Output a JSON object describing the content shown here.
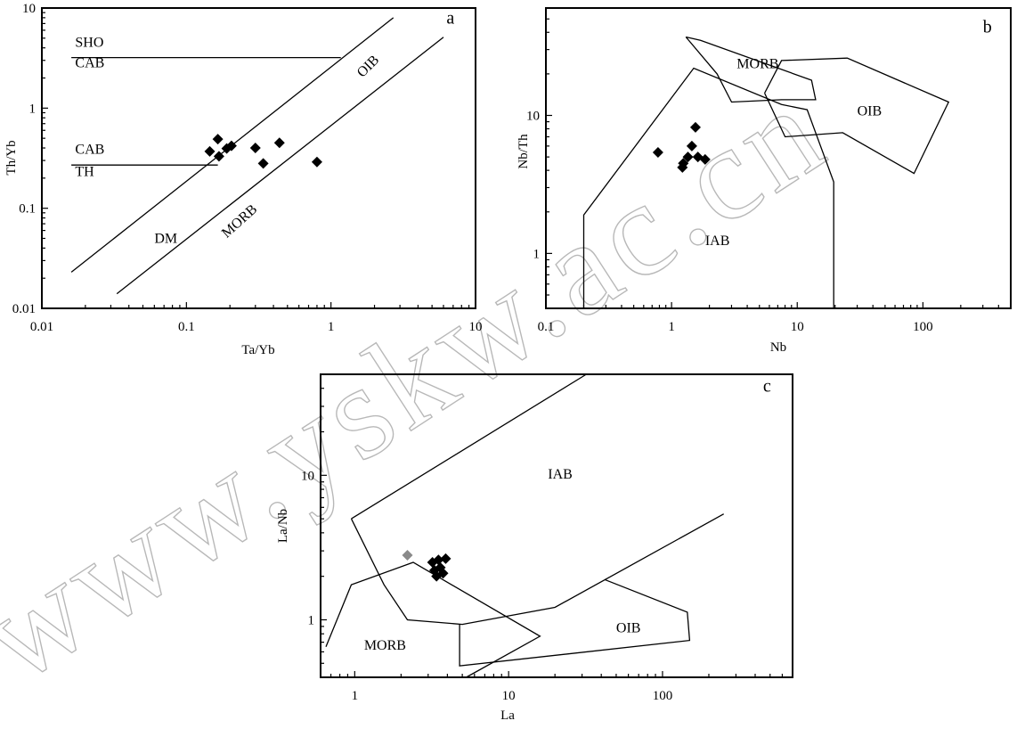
{
  "watermark": "www.yskw.ac.cn",
  "chart_data": [
    {
      "panel": "a",
      "type": "scatter",
      "xscale": "log",
      "yscale": "log",
      "xlim": [
        0.01,
        10
      ],
      "ylim": [
        0.01,
        10
      ],
      "xticks": [
        "0.01",
        "0.1",
        "1",
        "10"
      ],
      "yticks": [
        "0.01",
        "0.1",
        "1",
        "10"
      ],
      "xlabel": "Ta/Yb",
      "ylabel": "Th/Yb",
      "points": [
        {
          "x": 0.145,
          "y": 0.37
        },
        {
          "x": 0.165,
          "y": 0.49
        },
        {
          "x": 0.168,
          "y": 0.33
        },
        {
          "x": 0.19,
          "y": 0.395
        },
        {
          "x": 0.205,
          "y": 0.42
        },
        {
          "x": 0.3,
          "y": 0.4
        },
        {
          "x": 0.34,
          "y": 0.28
        },
        {
          "x": 0.44,
          "y": 0.45
        },
        {
          "x": 0.8,
          "y": 0.29
        }
      ],
      "lines": [
        {
          "name": "array-upper",
          "pts": [
            [
              0.016,
              0.023
            ],
            [
              2.7,
              8.0
            ]
          ]
        },
        {
          "name": "array-lower",
          "pts": [
            [
              0.033,
              0.014
            ],
            [
              6.0,
              5.1
            ]
          ]
        },
        {
          "name": "sho-cab",
          "pts": [
            [
              0.016,
              3.2
            ],
            [
              1.17,
              3.2
            ]
          ]
        },
        {
          "name": "cab-th",
          "pts": [
            [
              0.016,
              0.27
            ],
            [
              0.165,
              0.27
            ]
          ]
        }
      ],
      "labels": [
        {
          "text": "SHO",
          "x": 0.017,
          "y": 4.1,
          "rot": 0
        },
        {
          "text": "CAB",
          "x": 0.017,
          "y": 2.55,
          "rot": 0
        },
        {
          "text": "CAB",
          "x": 0.017,
          "y": 0.35,
          "rot": 0
        },
        {
          "text": "TH",
          "x": 0.017,
          "y": 0.21,
          "rot": 0
        },
        {
          "text": "DM",
          "x": 0.06,
          "y": 0.045,
          "rot": 0
        },
        {
          "text": "MORB",
          "x": 0.19,
          "y": 0.05,
          "rot": -42
        },
        {
          "text": "OIB",
          "x": 1.65,
          "y": 2.0,
          "rot": -45
        },
        {
          "text": "a",
          "x": 6.3,
          "y": 7.0,
          "rot": 0
        }
      ]
    },
    {
      "panel": "b",
      "type": "scatter",
      "xscale": "log",
      "yscale": "log",
      "xlim": [
        0.1,
        500
      ],
      "ylim": [
        0.4,
        60
      ],
      "xticks": [
        "0.1",
        "1",
        "10",
        "100"
      ],
      "yticks": [
        "1",
        "10"
      ],
      "xlabel": "Nb",
      "ylabel": "Nb/Th",
      "points": [
        {
          "x": 0.78,
          "y": 5.4
        },
        {
          "x": 1.22,
          "y": 4.2
        },
        {
          "x": 1.24,
          "y": 4.5
        },
        {
          "x": 1.35,
          "y": 5.0
        },
        {
          "x": 1.45,
          "y": 6.0
        },
        {
          "x": 1.55,
          "y": 8.2
        },
        {
          "x": 1.62,
          "y": 5.0
        },
        {
          "x": 1.85,
          "y": 4.8
        }
      ],
      "lines": [
        {
          "name": "IAB",
          "pts": [
            [
              0.2,
              0.4
            ],
            [
              0.2,
              1.9
            ],
            [
              1.5,
              22
            ],
            [
              7.5,
              12
            ],
            [
              12,
              11
            ],
            [
              19.5,
              3.3
            ],
            [
              19.5,
              0.4
            ]
          ]
        },
        {
          "name": "MORB",
          "pts": [
            [
              1.3,
              37
            ],
            [
              2.3,
              20
            ],
            [
              3.0,
              12.5
            ],
            [
              7.5,
              13
            ],
            [
              14,
              13
            ],
            [
              13,
              18
            ],
            [
              1.7,
              35
            ],
            [
              1.3,
              37
            ]
          ]
        },
        {
          "name": "OIB",
          "pts": [
            [
              5.5,
              14.5
            ],
            [
              7.5,
              25
            ],
            [
              25,
              26
            ],
            [
              160,
              12.5
            ],
            [
              85,
              3.8
            ],
            [
              23,
              7.5
            ],
            [
              8,
              7.0
            ],
            [
              5.5,
              14.5
            ]
          ]
        }
      ],
      "labels": [
        {
          "text": "MORB",
          "x": 3.3,
          "y": 22,
          "rot": 0
        },
        {
          "text": "OIB",
          "x": 30,
          "y": 10,
          "rot": 0
        },
        {
          "text": "IAB",
          "x": 1.85,
          "y": 1.15,
          "rot": 0
        },
        {
          "text": "b",
          "x": 300,
          "y": 40,
          "rot": 0
        }
      ]
    },
    {
      "panel": "c",
      "type": "scatter",
      "xscale": "log",
      "yscale": "log",
      "xlim": [
        0.6,
        700
      ],
      "ylim": [
        0.4,
        50
      ],
      "xticks": [
        "1",
        "10",
        "100"
      ],
      "yticks": [
        "1",
        "10"
      ],
      "xlabel": "La",
      "ylabel": "La/Nb",
      "points": [
        {
          "x": 2.2,
          "y": 2.8,
          "color": "#8a8a8a"
        },
        {
          "x": 3.2,
          "y": 2.5
        },
        {
          "x": 3.3,
          "y": 2.2
        },
        {
          "x": 3.4,
          "y": 2.0
        },
        {
          "x": 3.5,
          "y": 2.6
        },
        {
          "x": 3.6,
          "y": 2.3
        },
        {
          "x": 3.75,
          "y": 2.1
        },
        {
          "x": 3.9,
          "y": 2.65
        }
      ],
      "lines": [
        {
          "name": "IAB-upper",
          "pts": [
            [
              0.95,
              5.0
            ],
            [
              32,
              50
            ]
          ]
        },
        {
          "name": "IAB-lower",
          "pts": [
            [
              0.95,
              5.0
            ],
            [
              1.55,
              1.75
            ],
            [
              2.2,
              1.0
            ],
            [
              5.0,
              0.93
            ],
            [
              20,
              1.22
            ],
            [
              250,
              5.4
            ]
          ]
        },
        {
          "name": "MORB",
          "pts": [
            [
              0.65,
              0.65
            ],
            [
              0.95,
              1.75
            ],
            [
              2.4,
              2.5
            ],
            [
              16,
              0.77
            ],
            [
              5.3,
              0.4
            ]
          ]
        },
        {
          "name": "OIB",
          "pts": [
            [
              4.8,
              0.93
            ],
            [
              4.8,
              0.48
            ],
            [
              150,
              0.72
            ],
            [
              145,
              1.13
            ],
            [
              42,
              1.9
            ]
          ]
        }
      ],
      "labels": [
        {
          "text": "IAB",
          "x": 18,
          "y": 9.5,
          "rot": 0
        },
        {
          "text": "MORB",
          "x": 1.15,
          "y": 0.62,
          "rot": 0
        },
        {
          "text": "OIB",
          "x": 50,
          "y": 0.82,
          "rot": 0
        },
        {
          "text": "c",
          "x": 450,
          "y": 38,
          "rot": 0
        }
      ]
    }
  ]
}
